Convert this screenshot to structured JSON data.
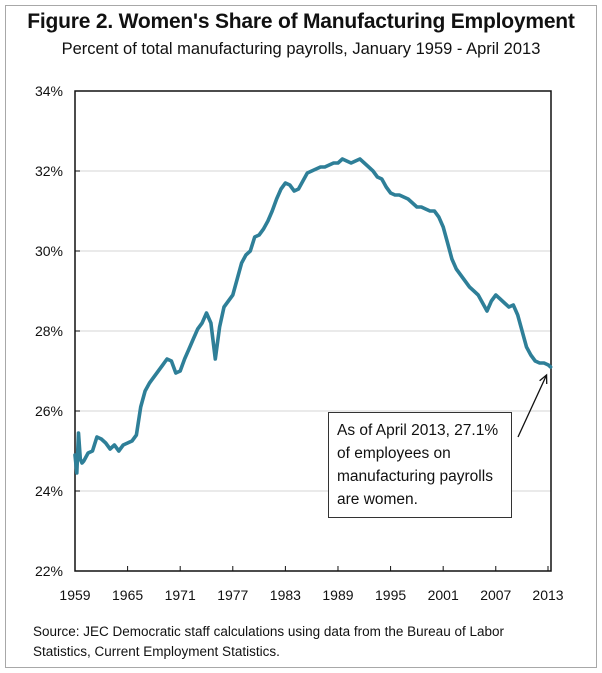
{
  "chart_data": {
    "type": "line",
    "title": "Figure 2. Women's Share of Manufacturing Employment",
    "subtitle": "Percent of total manufacturing payrolls, January 1959 - April 2013",
    "xlabel": "",
    "ylabel": "",
    "xlim": [
      1959,
      2013.3
    ],
    "ylim": [
      22,
      34
    ],
    "grid": true,
    "legend": "none",
    "x_ticks": [
      1959,
      1965,
      1971,
      1977,
      1983,
      1989,
      1995,
      2001,
      2007,
      2013
    ],
    "x_tick_labels": [
      "1959",
      "1965",
      "1971",
      "1977",
      "1983",
      "1989",
      "1995",
      "2001",
      "2007",
      "2013"
    ],
    "y_ticks": [
      22,
      24,
      26,
      28,
      30,
      32,
      34
    ],
    "y_tick_labels": [
      "22%",
      "24%",
      "26%",
      "28%",
      "30%",
      "32%",
      "34%"
    ],
    "series": [
      {
        "name": "Women's share of manufacturing employment (%)",
        "color": "#2e7f98",
        "x": [
          1959.0,
          1959.2,
          1959.4,
          1959.6,
          1959.8,
          1960.0,
          1960.5,
          1961.0,
          1961.5,
          1962.0,
          1962.5,
          1963.0,
          1963.5,
          1964.0,
          1964.5,
          1965.0,
          1965.5,
          1966.0,
          1966.5,
          1967.0,
          1967.5,
          1968.0,
          1968.5,
          1969.0,
          1969.5,
          1970.0,
          1970.5,
          1971.0,
          1971.5,
          1972.0,
          1972.5,
          1973.0,
          1973.5,
          1974.0,
          1974.5,
          1975.0,
          1975.5,
          1976.0,
          1976.5,
          1977.0,
          1977.5,
          1978.0,
          1978.5,
          1979.0,
          1979.5,
          1980.0,
          1980.5,
          1981.0,
          1981.5,
          1982.0,
          1982.5,
          1983.0,
          1983.5,
          1984.0,
          1984.5,
          1985.0,
          1985.5,
          1986.0,
          1986.5,
          1987.0,
          1987.5,
          1988.0,
          1988.5,
          1989.0,
          1989.5,
          1990.0,
          1990.5,
          1991.0,
          1991.5,
          1992.0,
          1992.5,
          1993.0,
          1993.5,
          1994.0,
          1994.5,
          1995.0,
          1995.5,
          1996.0,
          1996.5,
          1997.0,
          1997.5,
          1998.0,
          1998.5,
          1999.0,
          1999.5,
          2000.0,
          2000.5,
          2001.0,
          2001.5,
          2002.0,
          2002.5,
          2003.0,
          2003.5,
          2004.0,
          2004.5,
          2005.0,
          2005.5,
          2006.0,
          2006.5,
          2007.0,
          2007.5,
          2008.0,
          2008.5,
          2009.0,
          2009.5,
          2010.0,
          2010.5,
          2011.0,
          2011.5,
          2012.0,
          2012.5,
          2013.0,
          2013.25
        ],
        "values": [
          24.9,
          24.45,
          25.45,
          24.8,
          24.7,
          24.75,
          24.95,
          25.0,
          25.35,
          25.3,
          25.2,
          25.05,
          25.15,
          25.0,
          25.15,
          25.2,
          25.25,
          25.4,
          26.1,
          26.5,
          26.7,
          26.85,
          27.0,
          27.15,
          27.3,
          27.25,
          26.95,
          27.0,
          27.3,
          27.55,
          27.8,
          28.05,
          28.2,
          28.45,
          28.2,
          27.3,
          28.1,
          28.6,
          28.75,
          28.9,
          29.3,
          29.7,
          29.9,
          30.0,
          30.35,
          30.4,
          30.55,
          30.75,
          31.0,
          31.3,
          31.55,
          31.7,
          31.65,
          31.5,
          31.55,
          31.75,
          31.95,
          32.0,
          32.05,
          32.1,
          32.1,
          32.15,
          32.2,
          32.2,
          32.3,
          32.25,
          32.2,
          32.25,
          32.3,
          32.2,
          32.1,
          32.0,
          31.85,
          31.8,
          31.6,
          31.45,
          31.4,
          31.4,
          31.35,
          31.3,
          31.2,
          31.1,
          31.1,
          31.05,
          31.0,
          31.0,
          30.85,
          30.6,
          30.2,
          29.8,
          29.55,
          29.4,
          29.25,
          29.1,
          29.0,
          28.9,
          28.7,
          28.5,
          28.75,
          28.9,
          28.8,
          28.7,
          28.6,
          28.65,
          28.4,
          28.0,
          27.6,
          27.4,
          27.25,
          27.2,
          27.2,
          27.15,
          27.1
        ]
      }
    ],
    "annotation": {
      "lines": [
        "As of April 2013, 27.1%",
        "of employees on",
        "manufacturing payrolls",
        "are women."
      ],
      "arrow_target": {
        "x": 2013.25,
        "y": 27.1
      }
    },
    "source": [
      "Source: JEC Democratic staff calculations using data from the Bureau of Labor",
      "Statistics, Current Employment Statistics."
    ]
  }
}
